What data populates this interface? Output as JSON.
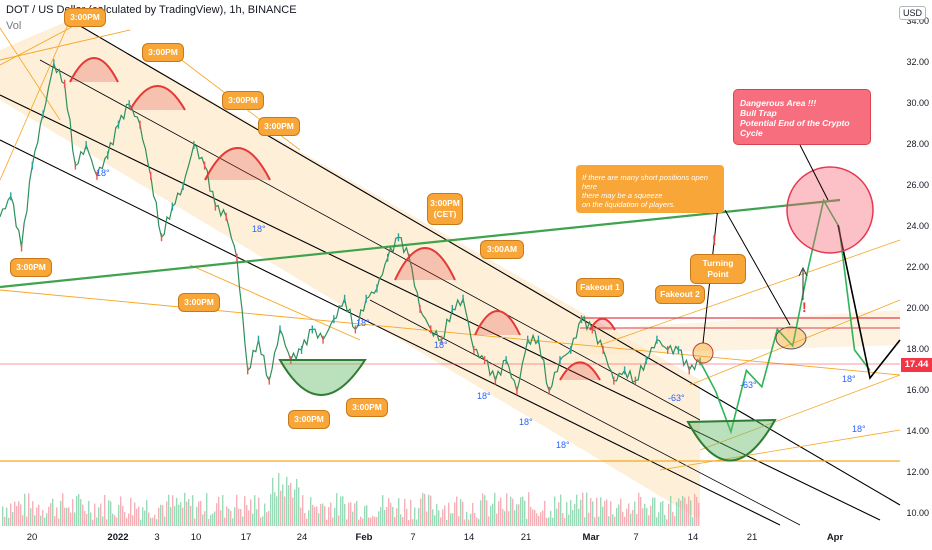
{
  "header": {
    "title": "DOT / US Dollar (calculated by TradingView), 1h, BINANCE",
    "sub": "Vol",
    "currency_button": "USD"
  },
  "chart_data": {
    "type": "line",
    "title": "DOT / US Dollar (calculated by TradingView), 1h, BINANCE",
    "ylim": [
      9.5,
      34.5
    ],
    "y_ticks": [
      "34.00",
      "32.00",
      "30.00",
      "28.00",
      "26.00",
      "24.00",
      "22.00",
      "20.00",
      "18.00",
      "16.00",
      "14.00",
      "12.00",
      "10.00"
    ],
    "x_ticks": [
      "20",
      "2022",
      "3",
      "10",
      "17",
      "24",
      "Feb",
      "7",
      "14",
      "21",
      "Mar",
      "7",
      "14",
      "21",
      "Apr"
    ],
    "last_price": "17.44",
    "series": [
      {
        "values": [
          24.5,
          25.5,
          23.0,
          27.0,
          29.5,
          32.0,
          31.0,
          27.0,
          28.0,
          26.5,
          27.5,
          29.0,
          30.0,
          29.0,
          26.5,
          23.5,
          25.0,
          26.0,
          28.0,
          27.0,
          25.0,
          24.5,
          22.5,
          17.0,
          18.5,
          16.5,
          19.0,
          17.5,
          18.0,
          19.0,
          18.5,
          19.5,
          20.5,
          19.0,
          20.5,
          21.0,
          22.5,
          23.5,
          22.5,
          20.0,
          19.0,
          18.5,
          20.0,
          20.5,
          18.0,
          17.5,
          16.5,
          17.5,
          16.0,
          18.5,
          18.5,
          16.0,
          17.5,
          18.0,
          19.5,
          19.0,
          18.0,
          16.5,
          17.0,
          16.5,
          17.5,
          18.5,
          18.0,
          18.0,
          17.0,
          17.44
        ]
      }
    ],
    "projection": [
      17.44,
      16.0,
      14.0,
      17.0,
      16.2,
      19.0,
      18.2,
      22.0,
      25.3,
      24.0,
      18.0,
      17.0
    ]
  },
  "callouts": [
    {
      "label": "3:00PM"
    },
    {
      "label": "3:00PM"
    },
    {
      "label": "3:00PM"
    },
    {
      "label": "3:00PM"
    },
    {
      "label": "3:00PM"
    },
    {
      "label": "3:00PM"
    },
    {
      "label": "3:00PM"
    },
    {
      "label": "3:00PM"
    },
    {
      "label": "3:00PM"
    },
    {
      "label": "3:00PM"
    },
    {
      "label": "3:00PM\n(CET)"
    },
    {
      "label": "3:00AM"
    },
    {
      "label": "Fakeout  1"
    },
    {
      "label": "Fakeout  2"
    },
    {
      "label": "Turning Point"
    }
  ],
  "notes": {
    "squeeze": "If there are many short positions open here\n  there may be a squeeze\n  on the liquidation of players.",
    "danger": "Dangerous Area !!!\nBull Trap\nPotential End of the Crypto Cycle"
  },
  "angles": [
    "18°",
    "18°",
    "18°",
    "18°",
    "18°",
    "18°",
    "18°",
    "18°",
    "18°",
    "-63°",
    "-63°"
  ],
  "colors": {
    "channel": "#000000",
    "trend_green": "#3fa34d",
    "fib_orange": "#f5a623",
    "arc_red": "#e53935",
    "resistance_red": "#e04050",
    "price_line": "#f23645",
    "channel_fill": "#fde9cc"
  }
}
